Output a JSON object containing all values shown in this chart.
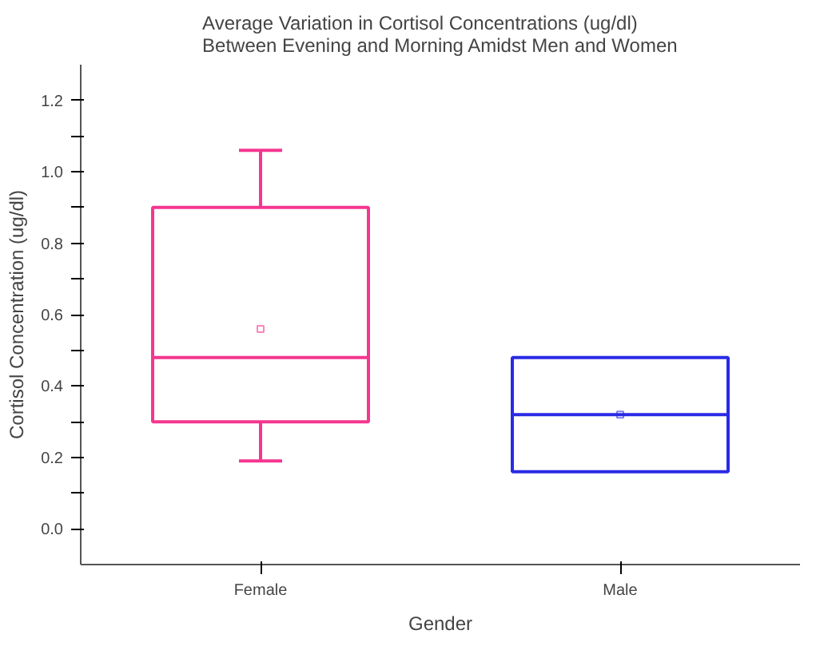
{
  "chart_data": {
    "type": "box",
    "title": "Average Variation in Cortisol Concentrations (ug/dl)\nBetween Evening and Morning Amidst Men and Women",
    "xlabel": "Gender",
    "ylabel": "Cortisol Concentration (ug/dl)",
    "categories": [
      "Female",
      "Male"
    ],
    "colors": [
      "#f5368f",
      "#2a2ae6"
    ],
    "boxes": [
      {
        "low": 0.19,
        "q1": 0.3,
        "median": 0.48,
        "q3": 0.9,
        "high": 1.06,
        "mean": 0.56
      },
      {
        "low": 0.16,
        "q1": 0.16,
        "median": 0.32,
        "q3": 0.48,
        "high": 0.48,
        "mean": 0.32
      }
    ],
    "ylim": [
      -0.1,
      1.3
    ],
    "yticks": [
      {
        "value": 0,
        "label": "0.0"
      },
      {
        "value": 0.1,
        "label": null
      },
      {
        "value": 0.2,
        "label": "0.2"
      },
      {
        "value": 0.3,
        "label": null
      },
      {
        "value": 0.4,
        "label": "0.4"
      },
      {
        "value": 0.5,
        "label": null
      },
      {
        "value": 0.6,
        "label": "0.6"
      },
      {
        "value": 0.7,
        "label": null
      },
      {
        "value": 0.8,
        "label": "0.8"
      },
      {
        "value": 0.9,
        "label": null
      },
      {
        "value": 1.0,
        "label": "1.0"
      },
      {
        "value": 1.1,
        "label": null
      },
      {
        "value": 1.2,
        "label": "1.2"
      }
    ],
    "grid": false
  }
}
